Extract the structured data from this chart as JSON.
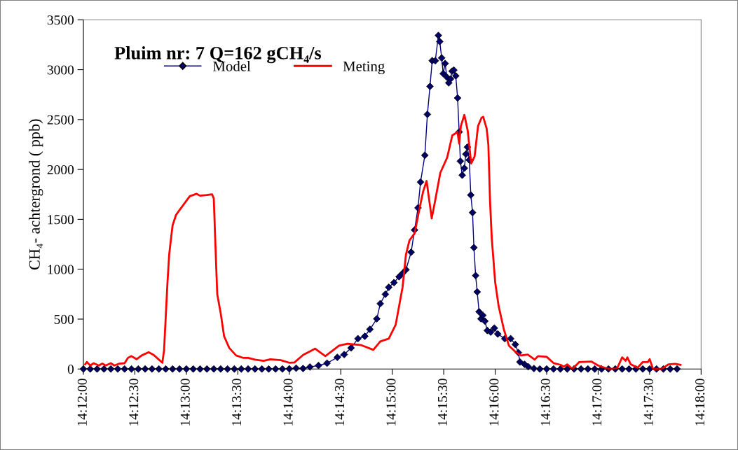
{
  "chart_data": {
    "type": "line",
    "title": "Pluim nr: 7 Q=162 gCH₄/s",
    "ylabel": "CH₄- achtergrond ( ppb)",
    "xlim": [
      14.2,
      14.3
    ],
    "ylim": [
      0,
      3500
    ],
    "xticks": [
      {
        "value": 14.2,
        "label": "14:12:00"
      },
      {
        "value": 14.208333,
        "label": "14:12:30"
      },
      {
        "value": 14.216667,
        "label": "14:13:00"
      },
      {
        "value": 14.225,
        "label": "14:13:30"
      },
      {
        "value": 14.233333,
        "label": "14:14:00"
      },
      {
        "value": 14.241667,
        "label": "14:14:30"
      },
      {
        "value": 14.25,
        "label": "14:15:00"
      },
      {
        "value": 14.258333,
        "label": "14:15:30"
      },
      {
        "value": 14.266667,
        "label": "14:16:00"
      },
      {
        "value": 14.275,
        "label": "14:16:30"
      },
      {
        "value": 14.283333,
        "label": "14:17:00"
      },
      {
        "value": 14.291667,
        "label": "14:17:30"
      },
      {
        "value": 14.3,
        "label": "14:18:00"
      }
    ],
    "yticks": [
      0,
      500,
      1000,
      1500,
      2000,
      2500,
      3000,
      3500
    ],
    "grid": false,
    "legend": "top left",
    "series": [
      {
        "name": "Model",
        "color": "#000080",
        "marker": "diamond",
        "x": [
          14.2,
          14.20111,
          14.20222,
          14.20333,
          14.20444,
          14.20556,
          14.20667,
          14.20778,
          14.20889,
          14.21,
          14.21111,
          14.21222,
          14.21333,
          14.21444,
          14.21556,
          14.21667,
          14.21778,
          14.21889,
          14.22,
          14.22111,
          14.22222,
          14.22333,
          14.22444,
          14.22556,
          14.22667,
          14.22778,
          14.22889,
          14.23,
          14.23111,
          14.23222,
          14.23333,
          14.23444,
          14.23556,
          14.23667,
          14.23806,
          14.23944,
          14.24111,
          14.24222,
          14.24333,
          14.24444,
          14.24556,
          14.24639,
          14.2475,
          14.24806,
          14.24889,
          14.24944,
          14.25028,
          14.25111,
          14.25167,
          14.25222,
          14.25306,
          14.25361,
          14.25417,
          14.25458,
          14.25528,
          14.25569,
          14.25611,
          14.25647,
          14.25697,
          14.25747,
          14.25769,
          14.258,
          14.25825,
          14.25856,
          14.25883,
          14.25914,
          14.25944,
          14.25969,
          14.25997,
          14.26028,
          14.26058,
          14.26083,
          14.26103,
          14.26133,
          14.26167,
          14.26192,
          14.26217,
          14.26247,
          14.26272,
          14.263,
          14.26322,
          14.2635,
          14.26375,
          14.26406,
          14.26436,
          14.26467,
          14.265,
          14.26539,
          14.26594,
          14.26653,
          14.26708,
          14.26822,
          14.26917,
          14.26992,
          14.27042,
          14.27067,
          14.27142,
          14.272,
          14.27294,
          14.27389,
          14.275,
          14.27611,
          14.27722,
          14.27833,
          14.27944,
          14.28056,
          14.28167,
          14.28278,
          14.28389,
          14.285,
          14.28611,
          14.28722,
          14.28833,
          14.28944,
          14.29056,
          14.29167,
          14.29278,
          14.29389,
          14.295,
          14.29611
        ],
        "values": [
          0,
          0,
          0,
          0,
          0,
          0,
          0,
          0,
          0,
          0,
          0,
          0,
          0,
          0,
          0,
          0,
          0,
          0,
          0,
          0,
          0,
          0,
          0,
          0,
          0,
          0,
          0,
          0,
          0,
          0,
          2,
          8,
          5,
          20,
          35,
          58,
          117,
          145,
          211,
          304,
          328,
          398,
          503,
          655,
          749,
          819,
          866,
          925,
          960,
          995,
          1171,
          1393,
          1615,
          1873,
          2142,
          2552,
          2833,
          3090,
          3090,
          3343,
          3282,
          3118,
          2961,
          3062,
          2926,
          2868,
          2907,
          2985,
          2996,
          2938,
          2716,
          2376,
          2083,
          1943,
          2013,
          2154,
          2224,
          2095,
          1744,
          1568,
          1217,
          936,
          773,
          574,
          503,
          538,
          480,
          386,
          370,
          410,
          351,
          304,
          304,
          246,
          164,
          70,
          47,
          23,
          5,
          0,
          0,
          0,
          0,
          0,
          0,
          0,
          0,
          0,
          0,
          0,
          0,
          0,
          0,
          0,
          0,
          0,
          0,
          0,
          0,
          0
        ]
      },
      {
        "name": "Meting",
        "color": "#ff0000",
        "marker": "none",
        "x": [
          14.20028,
          14.20056,
          14.20111,
          14.20167,
          14.2025,
          14.20306,
          14.20361,
          14.20444,
          14.205,
          14.20583,
          14.20667,
          14.20722,
          14.20778,
          14.20861,
          14.20944,
          14.21056,
          14.21139,
          14.21222,
          14.21278,
          14.21306,
          14.21361,
          14.21389,
          14.21417,
          14.21444,
          14.215,
          14.21611,
          14.21722,
          14.21833,
          14.21889,
          14.22,
          14.22083,
          14.22111,
          14.22139,
          14.22167,
          14.22222,
          14.22278,
          14.22361,
          14.22472,
          14.22583,
          14.22667,
          14.22778,
          14.22917,
          14.23028,
          14.23194,
          14.23333,
          14.23417,
          14.23556,
          14.2375,
          14.23917,
          14.24139,
          14.24278,
          14.245,
          14.24694,
          14.24806,
          14.24944,
          14.25056,
          14.25167,
          14.25222,
          14.25278,
          14.25361,
          14.25444,
          14.255,
          14.25556,
          14.25639,
          14.25694,
          14.25778,
          14.25889,
          14.25972,
          14.26056,
          14.26083,
          14.26111,
          14.26167,
          14.26222,
          14.26278,
          14.26333,
          14.26389,
          14.26444,
          14.26472,
          14.26528,
          14.26556,
          14.26583,
          14.26611,
          14.26667,
          14.26722,
          14.26806,
          14.26889,
          14.27,
          14.27083,
          14.27194,
          14.27306,
          14.27361,
          14.275,
          14.27611,
          14.27722,
          14.27778,
          14.27833,
          14.27917,
          14.28028,
          14.28222,
          14.28333,
          14.285,
          14.28639,
          14.28722,
          14.28778,
          14.28806,
          14.28861,
          14.28972,
          14.29056,
          14.29139,
          14.29167,
          14.29222,
          14.29361,
          14.29472,
          14.29583,
          14.29667
        ],
        "values": [
          47,
          70,
          35,
          58,
          35,
          54,
          35,
          58,
          35,
          54,
          58,
          112,
          129,
          98,
          136,
          169,
          140,
          94,
          63,
          187,
          866,
          1147,
          1299,
          1440,
          1545,
          1639,
          1732,
          1756,
          1737,
          1744,
          1751,
          1709,
          1217,
          749,
          562,
          328,
          211,
          136,
          112,
          112,
          94,
          82,
          98,
          89,
          63,
          66,
          140,
          204,
          129,
          234,
          253,
          239,
          192,
          276,
          304,
          445,
          819,
          1147,
          1288,
          1358,
          1615,
          1779,
          1885,
          1510,
          1686,
          1966,
          2119,
          2341,
          2376,
          2259,
          2435,
          2547,
          2388,
          2060,
          2130,
          2435,
          2517,
          2528,
          2411,
          2247,
          1686,
          1311,
          866,
          632,
          398,
          234,
          169,
          136,
          145,
          94,
          129,
          122,
          59,
          42,
          23,
          47,
          0,
          70,
          75,
          35,
          0,
          5,
          117,
          82,
          117,
          47,
          12,
          70,
          70,
          98,
          0,
          0,
          47,
          52,
          42
        ]
      }
    ]
  }
}
